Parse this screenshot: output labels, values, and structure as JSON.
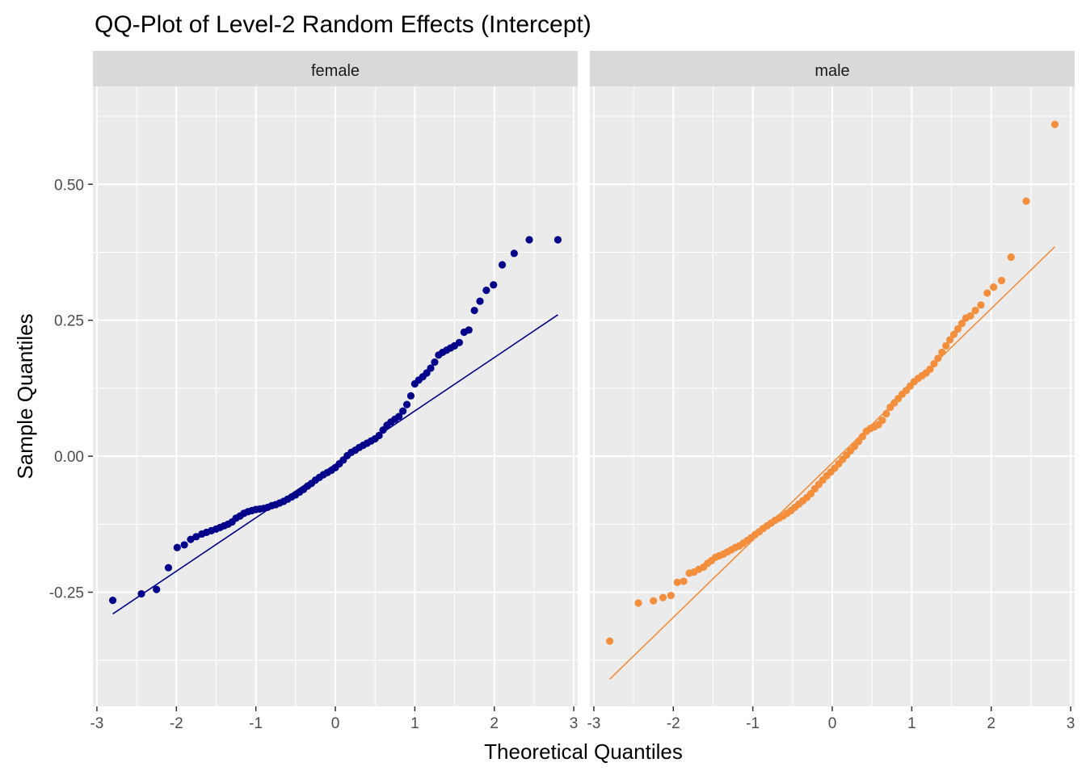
{
  "chart_data": {
    "type": "scatter",
    "title": "QQ-Plot of Level-2 Random Effects (Intercept)",
    "xlabel": "Theoretical Quantiles",
    "ylabel": "Sample Quantiles",
    "xlim": [
      -3.05,
      3.05
    ],
    "ylim": [
      -0.46,
      0.68
    ],
    "x_ticks": [
      -3,
      -2,
      -1,
      0,
      1,
      2,
      3
    ],
    "x_tick_labels": [
      "-3",
      "-2",
      "-1",
      "0",
      "1",
      "2",
      "3"
    ],
    "y_ticks": [
      -0.25,
      0.0,
      0.25,
      0.5
    ],
    "y_tick_labels": [
      "-0.25",
      "0.00",
      "0.25",
      "0.50"
    ],
    "grid": true,
    "panels": [
      {
        "name": "female",
        "color": "#00008B",
        "reference_line": {
          "x": [
            -2.8,
            2.8
          ],
          "y": [
            -0.29,
            0.26
          ]
        },
        "points": [
          [
            -2.8,
            -0.265
          ],
          [
            -2.44,
            -0.253
          ],
          [
            -2.25,
            -0.245
          ],
          [
            -2.1,
            -0.205
          ],
          [
            -1.99,
            -0.168
          ],
          [
            -1.9,
            -0.163
          ],
          [
            -1.82,
            -0.153
          ],
          [
            -1.75,
            -0.148
          ],
          [
            -1.68,
            -0.143
          ],
          [
            -1.62,
            -0.14
          ],
          [
            -1.56,
            -0.137
          ],
          [
            -1.5,
            -0.134
          ],
          [
            -1.45,
            -0.131
          ],
          [
            -1.4,
            -0.128
          ],
          [
            -1.35,
            -0.125
          ],
          [
            -1.3,
            -0.121
          ],
          [
            -1.25,
            -0.114
          ],
          [
            -1.2,
            -0.11
          ],
          [
            -1.15,
            -0.105
          ],
          [
            -1.1,
            -0.102
          ],
          [
            -1.05,
            -0.1
          ],
          [
            -1.0,
            -0.098
          ],
          [
            -0.95,
            -0.097
          ],
          [
            -0.9,
            -0.096
          ],
          [
            -0.85,
            -0.094
          ],
          [
            -0.8,
            -0.091
          ],
          [
            -0.75,
            -0.089
          ],
          [
            -0.7,
            -0.086
          ],
          [
            -0.65,
            -0.083
          ],
          [
            -0.6,
            -0.079
          ],
          [
            -0.55,
            -0.075
          ],
          [
            -0.5,
            -0.071
          ],
          [
            -0.45,
            -0.066
          ],
          [
            -0.4,
            -0.061
          ],
          [
            -0.35,
            -0.055
          ],
          [
            -0.3,
            -0.05
          ],
          [
            -0.25,
            -0.044
          ],
          [
            -0.2,
            -0.039
          ],
          [
            -0.15,
            -0.034
          ],
          [
            -0.1,
            -0.03
          ],
          [
            -0.05,
            -0.026
          ],
          [
            0.0,
            -0.021
          ],
          [
            0.05,
            -0.014
          ],
          [
            0.1,
            -0.007
          ],
          [
            0.15,
            0.001
          ],
          [
            0.2,
            0.007
          ],
          [
            0.25,
            0.011
          ],
          [
            0.3,
            0.016
          ],
          [
            0.35,
            0.02
          ],
          [
            0.4,
            0.024
          ],
          [
            0.45,
            0.028
          ],
          [
            0.5,
            0.032
          ],
          [
            0.55,
            0.038
          ],
          [
            0.6,
            0.048
          ],
          [
            0.65,
            0.057
          ],
          [
            0.7,
            0.063
          ],
          [
            0.75,
            0.068
          ],
          [
            0.8,
            0.073
          ],
          [
            0.85,
            0.083
          ],
          [
            0.9,
            0.095
          ],
          [
            0.95,
            0.111
          ],
          [
            1.0,
            0.133
          ],
          [
            1.05,
            0.14
          ],
          [
            1.1,
            0.146
          ],
          [
            1.15,
            0.153
          ],
          [
            1.2,
            0.162
          ],
          [
            1.25,
            0.173
          ],
          [
            1.3,
            0.186
          ],
          [
            1.35,
            0.191
          ],
          [
            1.4,
            0.195
          ],
          [
            1.45,
            0.199
          ],
          [
            1.5,
            0.203
          ],
          [
            1.56,
            0.209
          ],
          [
            1.62,
            0.228
          ],
          [
            1.68,
            0.232
          ],
          [
            1.75,
            0.268
          ],
          [
            1.82,
            0.285
          ],
          [
            1.9,
            0.305
          ],
          [
            1.99,
            0.315
          ],
          [
            2.1,
            0.352
          ],
          [
            2.25,
            0.373
          ],
          [
            2.44,
            0.398
          ],
          [
            2.8,
            0.398
          ]
        ]
      },
      {
        "name": "male",
        "color": "#F28E3C",
        "reference_line": {
          "x": [
            -2.8,
            2.8
          ],
          "y": [
            -0.41,
            0.385
          ]
        },
        "points": [
          [
            -2.8,
            -0.34
          ],
          [
            -2.44,
            -0.27
          ],
          [
            -2.25,
            -0.266
          ],
          [
            -2.13,
            -0.26
          ],
          [
            -2.03,
            -0.256
          ],
          [
            -1.95,
            -0.232
          ],
          [
            -1.87,
            -0.23
          ],
          [
            -1.8,
            -0.215
          ],
          [
            -1.74,
            -0.213
          ],
          [
            -1.68,
            -0.208
          ],
          [
            -1.62,
            -0.204
          ],
          [
            -1.57,
            -0.197
          ],
          [
            -1.52,
            -0.192
          ],
          [
            -1.47,
            -0.186
          ],
          [
            -1.42,
            -0.183
          ],
          [
            -1.37,
            -0.18
          ],
          [
            -1.32,
            -0.176
          ],
          [
            -1.27,
            -0.172
          ],
          [
            -1.22,
            -0.168
          ],
          [
            -1.17,
            -0.165
          ],
          [
            -1.12,
            -0.16
          ],
          [
            -1.07,
            -0.155
          ],
          [
            -1.02,
            -0.15
          ],
          [
            -0.97,
            -0.144
          ],
          [
            -0.92,
            -0.139
          ],
          [
            -0.87,
            -0.133
          ],
          [
            -0.82,
            -0.128
          ],
          [
            -0.77,
            -0.123
          ],
          [
            -0.72,
            -0.118
          ],
          [
            -0.67,
            -0.114
          ],
          [
            -0.62,
            -0.11
          ],
          [
            -0.57,
            -0.105
          ],
          [
            -0.52,
            -0.1
          ],
          [
            -0.47,
            -0.094
          ],
          [
            -0.42,
            -0.088
          ],
          [
            -0.37,
            -0.082
          ],
          [
            -0.32,
            -0.076
          ],
          [
            -0.27,
            -0.069
          ],
          [
            -0.22,
            -0.06
          ],
          [
            -0.17,
            -0.052
          ],
          [
            -0.12,
            -0.044
          ],
          [
            -0.07,
            -0.036
          ],
          [
            -0.02,
            -0.029
          ],
          [
            0.03,
            -0.022
          ],
          [
            0.08,
            -0.014
          ],
          [
            0.13,
            -0.006
          ],
          [
            0.18,
            0.002
          ],
          [
            0.23,
            0.01
          ],
          [
            0.28,
            0.018
          ],
          [
            0.33,
            0.027
          ],
          [
            0.38,
            0.036
          ],
          [
            0.43,
            0.046
          ],
          [
            0.48,
            0.051
          ],
          [
            0.53,
            0.054
          ],
          [
            0.58,
            0.058
          ],
          [
            0.63,
            0.066
          ],
          [
            0.68,
            0.078
          ],
          [
            0.73,
            0.09
          ],
          [
            0.78,
            0.098
          ],
          [
            0.83,
            0.106
          ],
          [
            0.88,
            0.114
          ],
          [
            0.93,
            0.121
          ],
          [
            0.98,
            0.129
          ],
          [
            1.03,
            0.137
          ],
          [
            1.08,
            0.143
          ],
          [
            1.13,
            0.148
          ],
          [
            1.18,
            0.153
          ],
          [
            1.23,
            0.16
          ],
          [
            1.28,
            0.17
          ],
          [
            1.33,
            0.18
          ],
          [
            1.38,
            0.191
          ],
          [
            1.43,
            0.203
          ],
          [
            1.48,
            0.214
          ],
          [
            1.53,
            0.224
          ],
          [
            1.58,
            0.234
          ],
          [
            1.63,
            0.244
          ],
          [
            1.68,
            0.254
          ],
          [
            1.74,
            0.258
          ],
          [
            1.8,
            0.268
          ],
          [
            1.87,
            0.278
          ],
          [
            1.95,
            0.3
          ],
          [
            2.03,
            0.311
          ],
          [
            2.13,
            0.323
          ],
          [
            2.25,
            0.366
          ],
          [
            2.44,
            0.469
          ],
          [
            2.8,
            0.61
          ]
        ]
      }
    ]
  }
}
